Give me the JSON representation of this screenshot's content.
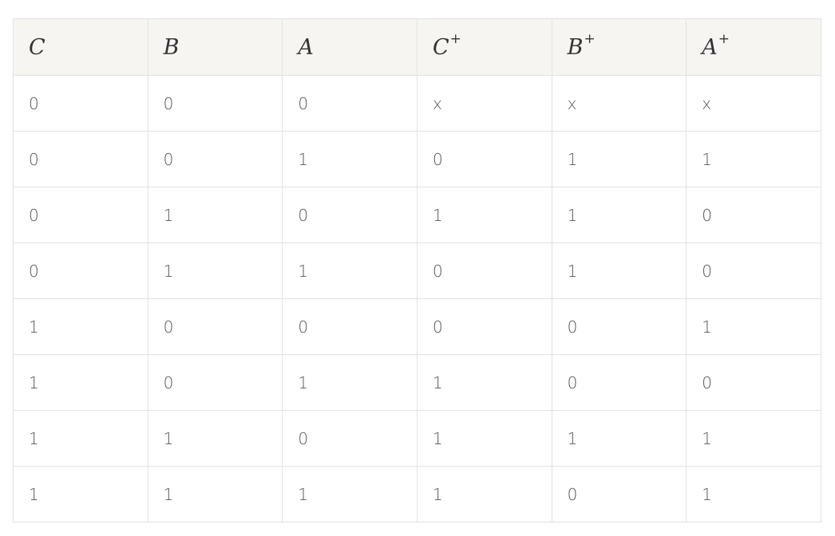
{
  "table": {
    "headers": [
      {
        "var": "C",
        "sup": ""
      },
      {
        "var": "B",
        "sup": ""
      },
      {
        "var": "A",
        "sup": ""
      },
      {
        "var": "C",
        "sup": "+"
      },
      {
        "var": "B",
        "sup": "+"
      },
      {
        "var": "A",
        "sup": "+"
      }
    ],
    "rows": [
      [
        "0",
        "0",
        "0",
        "x",
        "x",
        "x"
      ],
      [
        "0",
        "0",
        "1",
        "0",
        "1",
        "1"
      ],
      [
        "0",
        "1",
        "0",
        "1",
        "1",
        "0"
      ],
      [
        "0",
        "1",
        "1",
        "0",
        "1",
        "0"
      ],
      [
        "1",
        "0",
        "0",
        "0",
        "0",
        "1"
      ],
      [
        "1",
        "0",
        "1",
        "1",
        "0",
        "0"
      ],
      [
        "1",
        "1",
        "0",
        "1",
        "1",
        "1"
      ],
      [
        "1",
        "1",
        "1",
        "1",
        "0",
        "1"
      ]
    ]
  }
}
